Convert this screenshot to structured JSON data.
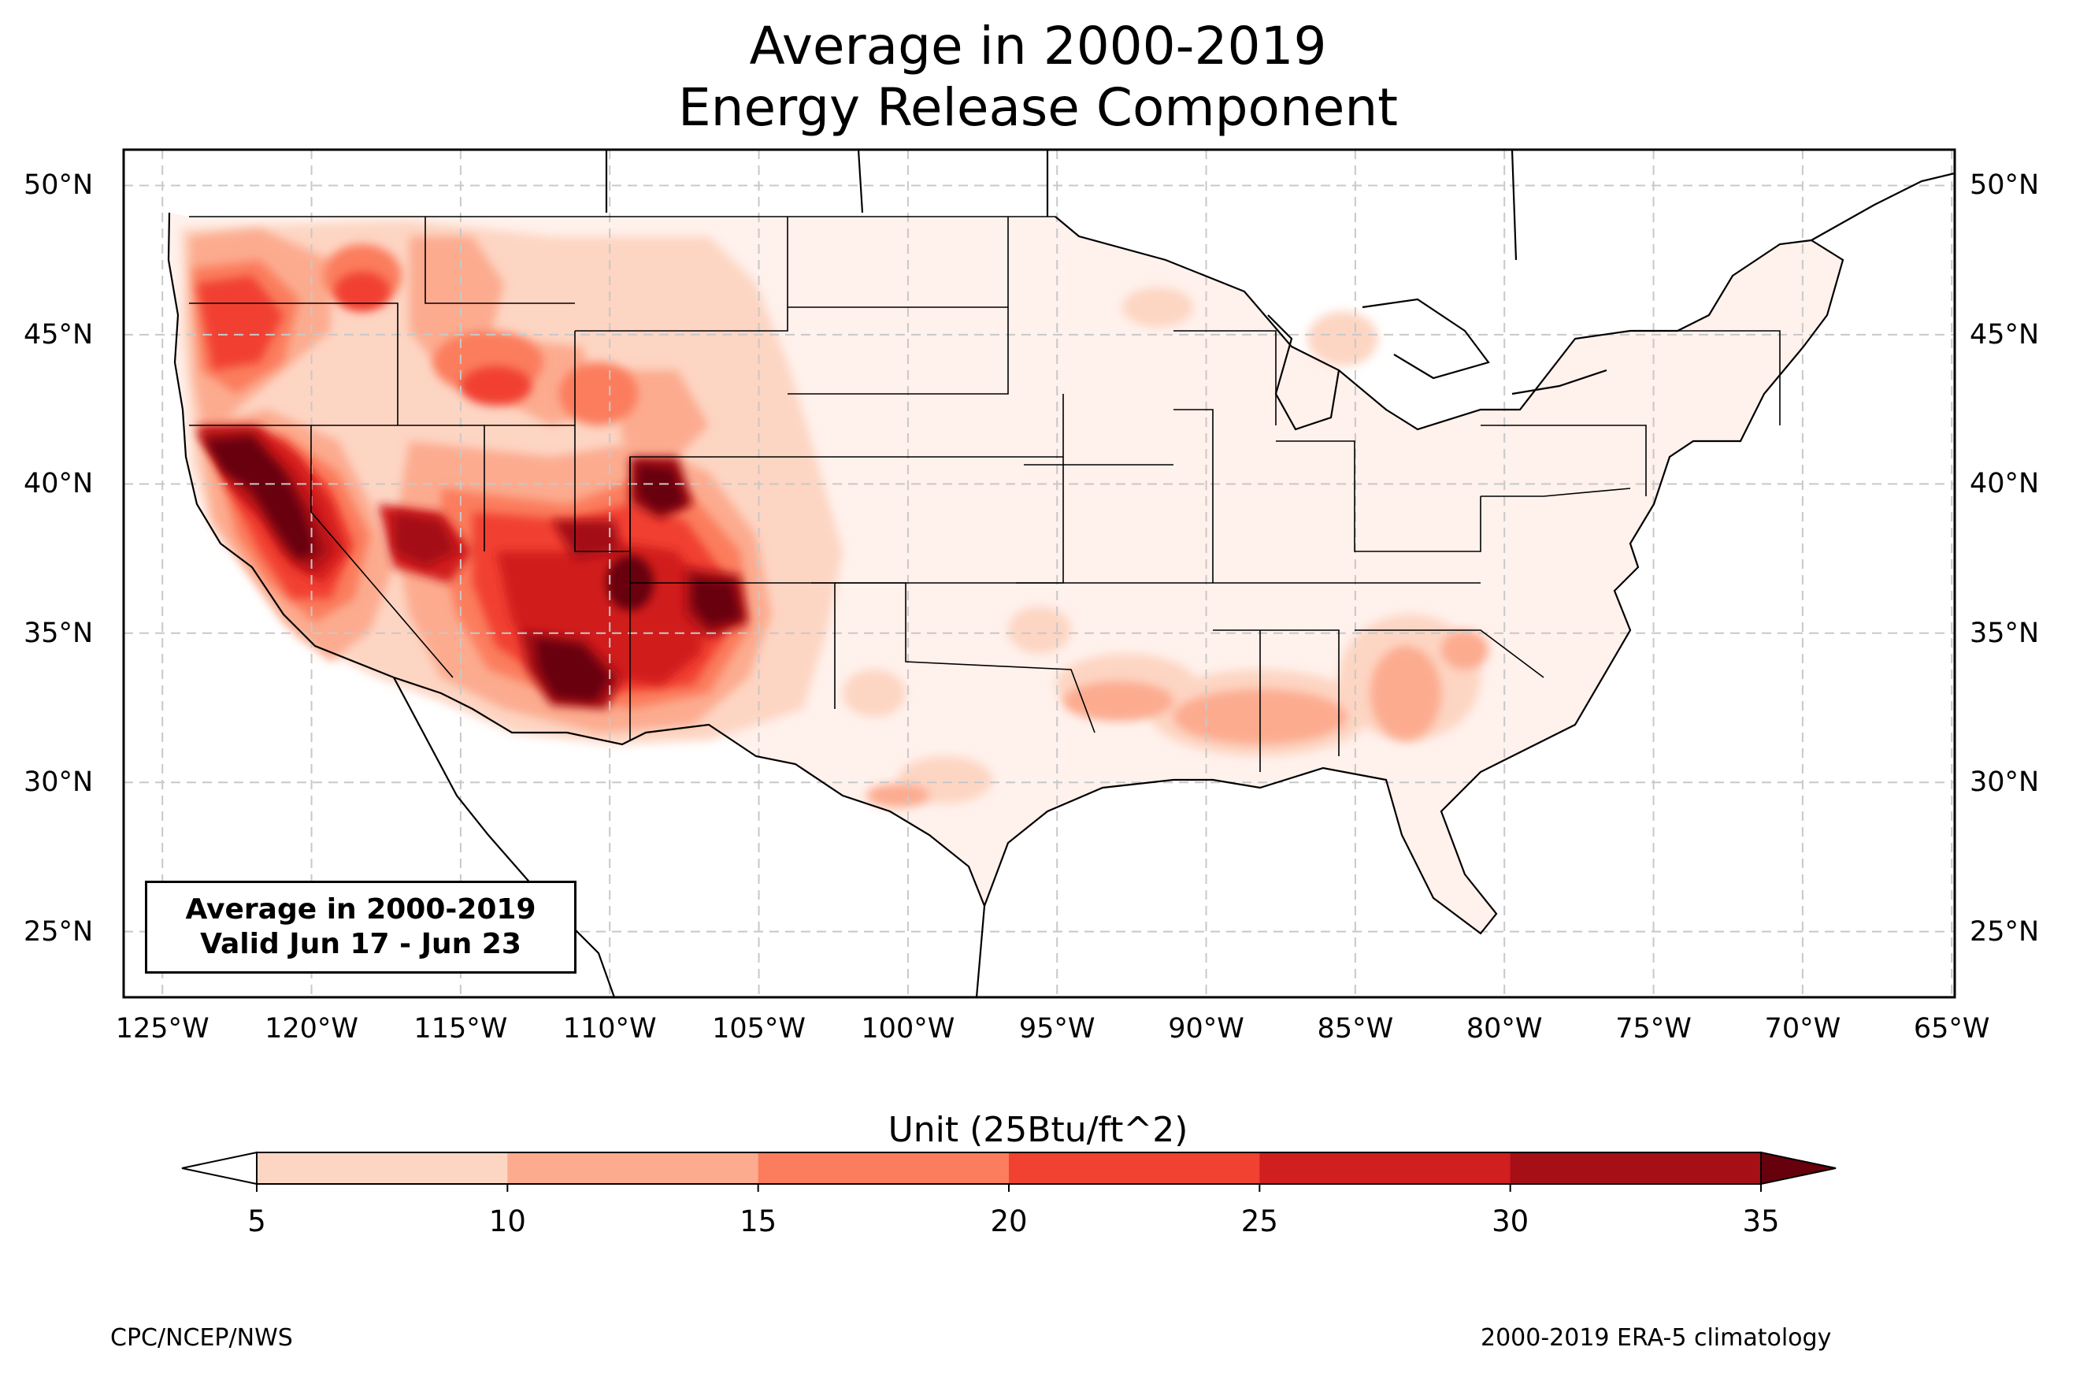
{
  "title": {
    "line1": "Average in 2000-2019",
    "line2": "Energy Release Component"
  },
  "map": {
    "lat_ticks": [
      "50°N",
      "45°N",
      "40°N",
      "35°N",
      "30°N",
      "25°N"
    ],
    "lon_ticks": [
      "125°W",
      "120°W",
      "115°W",
      "110°W",
      "105°W",
      "100°W",
      "95°W",
      "90°W",
      "85°W",
      "80°W",
      "75°W",
      "70°W",
      "65°W"
    ],
    "lat_values": [
      50,
      45,
      40,
      35,
      30,
      25
    ],
    "lon_values": [
      -125,
      -120,
      -115,
      -110,
      -105,
      -100,
      -95,
      -90,
      -85,
      -80,
      -75,
      -70,
      -65
    ],
    "extent": {
      "lon": [
        -126.3,
        -64.9
      ],
      "lat": [
        22.8,
        51.2
      ]
    },
    "gridlines": true,
    "hotspots": [
      {
        "region": "Central Valley / Nevada",
        "level": "35+"
      },
      {
        "region": "Southern Arizona",
        "level": "35+"
      },
      {
        "region": "Western Colorado / Utah",
        "level": "35+"
      },
      {
        "region": "Northern New Mexico",
        "level": "35+"
      }
    ]
  },
  "info_box": {
    "line1": "Average in 2000-2019",
    "line2": "Valid Jun 17 - Jun 23"
  },
  "colorbar": {
    "title": "Unit (25Btu/ft^2)",
    "ticks": [
      "5",
      "10",
      "15",
      "20",
      "25",
      "30",
      "35"
    ],
    "colors": [
      "#fdd5c3",
      "#fcab8f",
      "#fb7d5d",
      "#f14130",
      "#d11e1f",
      "#a50f15"
    ],
    "under_color": "#ffffff",
    "over_color": "#67000d",
    "extend": "both"
  },
  "footer": {
    "left": "CPC/NCEP/NWS",
    "right": "2000-2019 ERA-5 climatology"
  }
}
